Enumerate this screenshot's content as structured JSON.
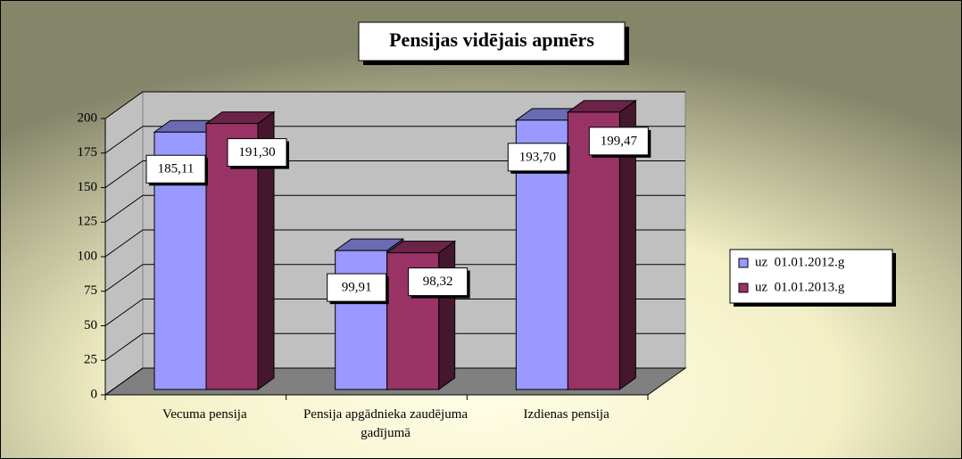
{
  "chart_data": {
    "type": "bar3d",
    "title": "Pensijas vidējais apmērs",
    "categories": [
      "Vecuma pensija",
      "Pensija apgādnieka zaudējuma gadījumā",
      "Izdienas pensija"
    ],
    "series": [
      {
        "name": "uz  01.01.2012.g",
        "color": "#9999ff",
        "values": [
          185.11,
          99.91,
          193.7
        ],
        "value_labels": [
          "185,11",
          "99,91",
          "193,70"
        ]
      },
      {
        "name": "uz  01.01.2013.g",
        "color": "#993366",
        "values": [
          191.3,
          98.32,
          199.47
        ],
        "value_labels": [
          "191,30",
          "98,32",
          "199,47"
        ]
      }
    ],
    "ylim": [
      0,
      200
    ],
    "yticks": [
      0,
      25,
      50,
      75,
      100,
      125,
      150,
      175,
      200
    ],
    "grid": true,
    "legend": "right"
  }
}
